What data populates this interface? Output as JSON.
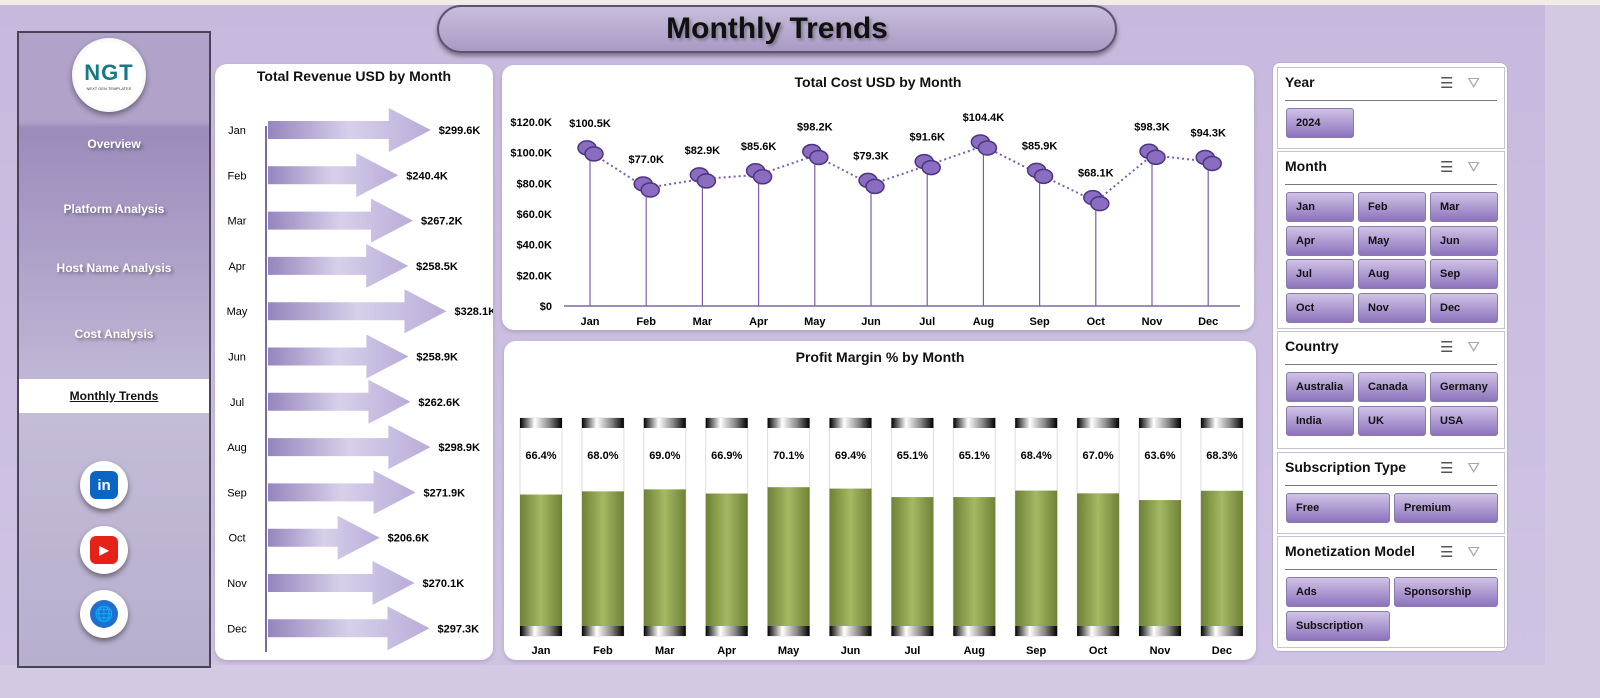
{
  "title": "Monthly Trends",
  "sidebar": {
    "logo_text": "NGT",
    "logo_sub": "NEXT GEN TEMPLATES",
    "items": [
      {
        "label": "Overview"
      },
      {
        "label": "Platform Analysis"
      },
      {
        "label": "Host Name Analysis"
      },
      {
        "label": "Cost Analysis"
      },
      {
        "label": "Monthly Trends",
        "active": true
      }
    ],
    "social": [
      {
        "name": "linkedin",
        "glyph": "in",
        "color": "#0a66c2"
      },
      {
        "name": "youtube",
        "glyph": "▶",
        "color": "#e62117"
      },
      {
        "name": "website",
        "glyph": "🌐",
        "color": "#1e6fd0"
      }
    ]
  },
  "chart_data": [
    {
      "type": "bar",
      "orientation": "horizontal",
      "title": "Total Revenue USD by Month",
      "categories": [
        "Jan",
        "Feb",
        "Mar",
        "Apr",
        "May",
        "Jun",
        "Jul",
        "Aug",
        "Sep",
        "Oct",
        "Nov",
        "Dec"
      ],
      "values": [
        299.6,
        240.4,
        267.2,
        258.5,
        328.1,
        258.9,
        262.6,
        298.9,
        271.9,
        206.6,
        270.1,
        297.3
      ],
      "labels": [
        "$299.6K",
        "$240.4K",
        "$267.2K",
        "$258.5K",
        "$328.1K",
        "$258.9K",
        "$262.6K",
        "$298.9K",
        "$271.9K",
        "$206.6K",
        "$270.1K",
        "$297.3K"
      ],
      "unit": "K USD",
      "color": "#b3a5d3"
    },
    {
      "type": "line",
      "title": "Total Cost USD by Month",
      "categories": [
        "Jan",
        "Feb",
        "Mar",
        "Apr",
        "May",
        "Jun",
        "Jul",
        "Aug",
        "Sep",
        "Oct",
        "Nov",
        "Dec"
      ],
      "values": [
        100.5,
        77.0,
        82.9,
        85.6,
        98.2,
        79.3,
        91.6,
        104.4,
        85.9,
        68.1,
        98.3,
        94.3
      ],
      "labels": [
        "$100.5K",
        "$77.0K",
        "$82.9K",
        "$85.6K",
        "$98.2K",
        "$79.3K",
        "$91.6K",
        "$104.4K",
        "$85.9K",
        "$68.1K",
        "$98.3K",
        "$94.3K"
      ],
      "ylim": [
        0,
        120
      ],
      "yticks": [
        "$0",
        "$20.0K",
        "$40.0K",
        "$60.0K",
        "$80.0K",
        "$100.0K",
        "$120.0K"
      ],
      "grid": false,
      "color": "#7a5fb0"
    },
    {
      "type": "bar",
      "title": "Profit Margin % by Month",
      "categories": [
        "Jan",
        "Feb",
        "Mar",
        "Apr",
        "May",
        "Jun",
        "Jul",
        "Aug",
        "Sep",
        "Oct",
        "Nov",
        "Dec"
      ],
      "values": [
        66.4,
        68.0,
        69.0,
        66.9,
        70.1,
        69.4,
        65.1,
        65.1,
        68.4,
        67.0,
        63.6,
        68.3
      ],
      "labels": [
        "66.4%",
        "68.0%",
        "69.0%",
        "66.9%",
        "70.1%",
        "69.4%",
        "65.1%",
        "65.1%",
        "68.4%",
        "67.0%",
        "63.6%",
        "68.3%"
      ],
      "ylim": [
        0,
        100
      ],
      "color": "#8fa34f"
    }
  ],
  "slicers": [
    {
      "title": "Year",
      "items": [
        "2024"
      ]
    },
    {
      "title": "Month",
      "items": [
        "Jan",
        "Feb",
        "Mar",
        "Apr",
        "May",
        "Jun",
        "Jul",
        "Aug",
        "Sep",
        "Oct",
        "Nov",
        "Dec"
      ]
    },
    {
      "title": "Country",
      "items": [
        "Australia",
        "Canada",
        "Germany",
        "India",
        "UK",
        "USA"
      ]
    },
    {
      "title": "Subscription Type",
      "items": [
        "Free",
        "Premium"
      ]
    },
    {
      "title": "Monetization Model",
      "items": [
        "Ads",
        "Sponsorship",
        "Subscription"
      ]
    }
  ]
}
